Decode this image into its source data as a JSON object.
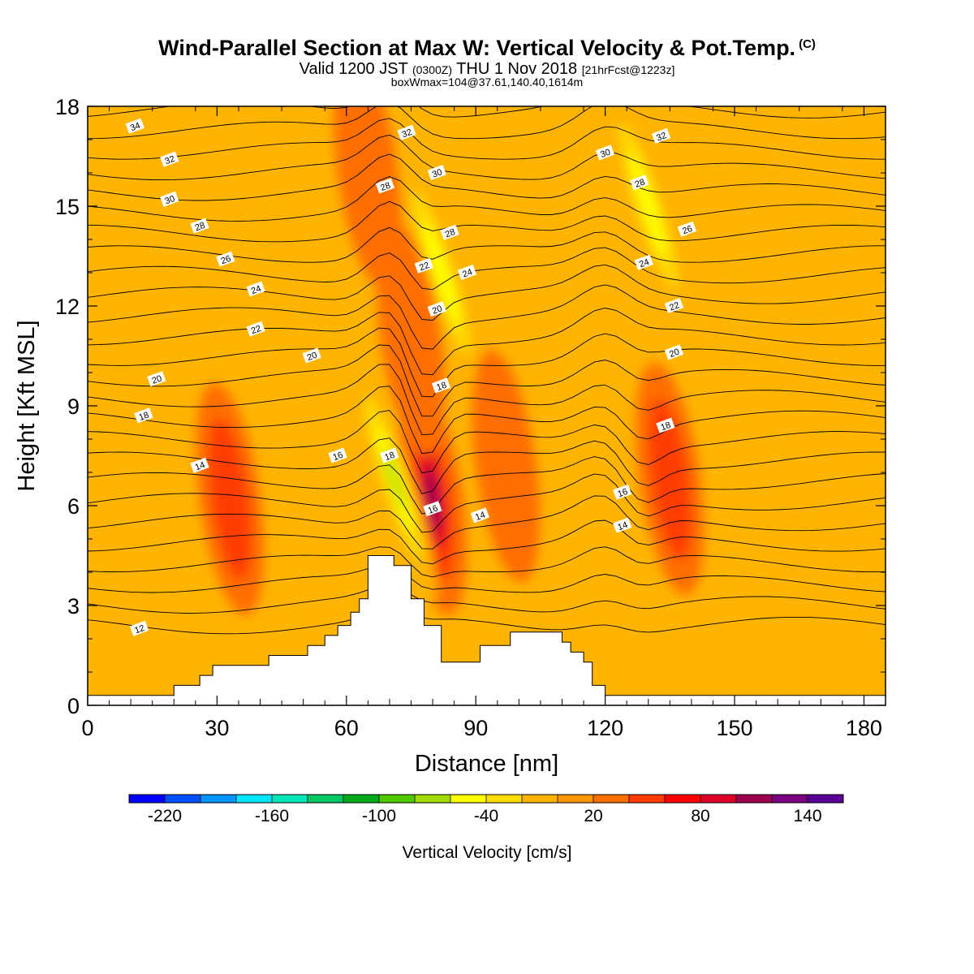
{
  "title": {
    "main": "Wind-Parallel Section at Max W: Vertical Velocity & Pot.Temp.",
    "copyright": "(C)",
    "valid_prefix": "Valid 1200 JST",
    "valid_utc": "(0300Z)",
    "valid_date": "THU 1 Nov 2018",
    "forecast": "[21hrFcst@1223z]",
    "boxmax": "boxWmax=104@37.61,140.40,1614m"
  },
  "chart_data": {
    "type": "contour-cross-section",
    "xlabel": "Distance [nm]",
    "ylabel": "Height [Kft MSL]",
    "xlim": [
      0,
      185
    ],
    "ylim": [
      0,
      18
    ],
    "x_ticks": [
      "0",
      "30",
      "60",
      "90",
      "120",
      "150",
      "180"
    ],
    "y_ticks": [
      "0",
      "3",
      "6",
      "9",
      "12",
      "15",
      "18"
    ],
    "colorbar": {
      "label": "Vertical Velocity [cm/s]",
      "tick_labels": [
        "-220",
        "-160",
        "-100",
        "-40",
        "20",
        "80",
        "140"
      ],
      "colors": [
        "#0000ff",
        "#0050ff",
        "#0096ff",
        "#00e6ff",
        "#00e6b4",
        "#00c864",
        "#00aa19",
        "#50c800",
        "#a0dc00",
        "#ffff00",
        "#ffdc00",
        "#ffb400",
        "#ff9600",
        "#ff6e00",
        "#ff3c00",
        "#ff0000",
        "#dc0028",
        "#a00050",
        "#78007d",
        "#5a0096"
      ]
    },
    "shading_peaks": [
      {
        "x": 80,
        "y": 6.2,
        "value": 104,
        "sign": "updraft"
      },
      {
        "x": 71,
        "y": 6.8,
        "value": -80,
        "sign": "downdraft"
      },
      {
        "x": 82,
        "y": 13.0,
        "value": -50,
        "sign": "downdraft"
      },
      {
        "x": 130,
        "y": 15.0,
        "value": -50,
        "sign": "downdraft"
      },
      {
        "x": 33,
        "y": 6.2,
        "value": 40,
        "sign": "updraft"
      },
      {
        "x": 135,
        "y": 6.8,
        "value": 40,
        "sign": "updraft"
      },
      {
        "x": 97,
        "y": 7.2,
        "value": 30,
        "sign": "updraft"
      },
      {
        "x": 75,
        "y": 11.0,
        "value": 30,
        "sign": "updraft"
      },
      {
        "x": 65,
        "y": 16.0,
        "value": 20,
        "sign": "updraft"
      }
    ],
    "theta_contour_labels": [
      {
        "text": "34",
        "x": 11,
        "y": 17.4
      },
      {
        "text": "32",
        "x": 19,
        "y": 16.4
      },
      {
        "text": "30",
        "x": 19,
        "y": 15.2
      },
      {
        "text": "28",
        "x": 26,
        "y": 14.4
      },
      {
        "text": "26",
        "x": 32,
        "y": 13.4
      },
      {
        "text": "24",
        "x": 39,
        "y": 12.5
      },
      {
        "text": "22",
        "x": 39,
        "y": 11.3
      },
      {
        "text": "20",
        "x": 52,
        "y": 10.5
      },
      {
        "text": "20",
        "x": 16,
        "y": 9.8
      },
      {
        "text": "18",
        "x": 13,
        "y": 8.7
      },
      {
        "text": "16",
        "x": 58,
        "y": 7.5
      },
      {
        "text": "14",
        "x": 26,
        "y": 7.2
      },
      {
        "text": "12",
        "x": 12,
        "y": 2.3
      },
      {
        "text": "18",
        "x": 70,
        "y": 7.5
      },
      {
        "text": "16",
        "x": 80,
        "y": 5.9
      },
      {
        "text": "14",
        "x": 91,
        "y": 5.7
      },
      {
        "text": "18",
        "x": 82,
        "y": 9.6
      },
      {
        "text": "20",
        "x": 81,
        "y": 11.9
      },
      {
        "text": "22",
        "x": 78,
        "y": 13.2
      },
      {
        "text": "24",
        "x": 88,
        "y": 13.0
      },
      {
        "text": "28",
        "x": 84,
        "y": 14.2
      },
      {
        "text": "28",
        "x": 69,
        "y": 15.6
      },
      {
        "text": "30",
        "x": 81,
        "y": 16.0
      },
      {
        "text": "32",
        "x": 74,
        "y": 17.2
      },
      {
        "text": "30",
        "x": 120,
        "y": 16.6
      },
      {
        "text": "32",
        "x": 133,
        "y": 17.1
      },
      {
        "text": "28",
        "x": 128,
        "y": 15.7
      },
      {
        "text": "26",
        "x": 139,
        "y": 14.3
      },
      {
        "text": "24",
        "x": 129,
        "y": 13.3
      },
      {
        "text": "22",
        "x": 136,
        "y": 12.0
      },
      {
        "text": "20",
        "x": 136,
        "y": 10.6
      },
      {
        "text": "18",
        "x": 134,
        "y": 8.4
      },
      {
        "text": "16",
        "x": 124,
        "y": 6.4
      },
      {
        "text": "14",
        "x": 124,
        "y": 5.4
      }
    ],
    "terrain_kft": [
      [
        0,
        0.3
      ],
      [
        18,
        0.3
      ],
      [
        20,
        0.6
      ],
      [
        26,
        0.9
      ],
      [
        29,
        1.2
      ],
      [
        36,
        1.2
      ],
      [
        42,
        1.5
      ],
      [
        48,
        1.5
      ],
      [
        51,
        1.8
      ],
      [
        55,
        2.1
      ],
      [
        58,
        2.4
      ],
      [
        61,
        2.8
      ],
      [
        63,
        3.2
      ],
      [
        65,
        4.5
      ],
      [
        68,
        4.5
      ],
      [
        71,
        4.2
      ],
      [
        74,
        4.2
      ],
      [
        75,
        3.2
      ],
      [
        77,
        3.2
      ],
      [
        78,
        2.4
      ],
      [
        81,
        2.4
      ],
      [
        82,
        1.3
      ],
      [
        88,
        1.3
      ],
      [
        91,
        1.8
      ],
      [
        95,
        1.8
      ],
      [
        98,
        2.2
      ],
      [
        107,
        2.2
      ],
      [
        110,
        1.9
      ],
      [
        112,
        1.6
      ],
      [
        115,
        1.3
      ],
      [
        117,
        0.6
      ],
      [
        120,
        0.3
      ],
      [
        185,
        0.3
      ]
    ]
  }
}
